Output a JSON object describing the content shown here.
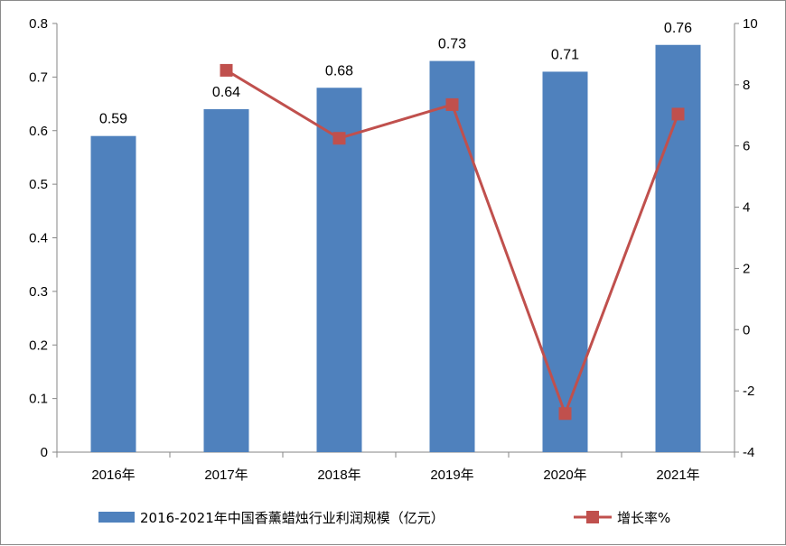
{
  "chart_data": {
    "type": "bar+line",
    "title": "",
    "categories": [
      "2016年",
      "2017年",
      "2018年",
      "2019年",
      "2020年",
      "2021年"
    ],
    "series": [
      {
        "name": "2016-2021年中国香薰蜡烛行业利润规模（亿元）",
        "type": "bar",
        "axis": "left",
        "values": [
          0.59,
          0.64,
          0.68,
          0.73,
          0.71,
          0.76
        ],
        "data_labels": [
          "0.59",
          "0.64",
          "0.68",
          "0.73",
          "0.71",
          "0.76"
        ],
        "color": "#4f81bd"
      },
      {
        "name": "增长率%",
        "type": "line",
        "axis": "right",
        "values": [
          null,
          8.47,
          6.25,
          7.35,
          -2.74,
          7.04
        ],
        "color": "#c0504d"
      }
    ],
    "y_left": {
      "min": 0,
      "max": 0.8,
      "ticks": [
        "0",
        "0.1",
        "0.2",
        "0.3",
        "0.4",
        "0.5",
        "0.6",
        "0.7",
        "0.8"
      ]
    },
    "y_right": {
      "min": -4,
      "max": 10,
      "ticks": [
        "-4",
        "-2",
        "0",
        "2",
        "4",
        "6",
        "8",
        "10"
      ]
    },
    "grid": false,
    "legend_position": "bottom"
  }
}
